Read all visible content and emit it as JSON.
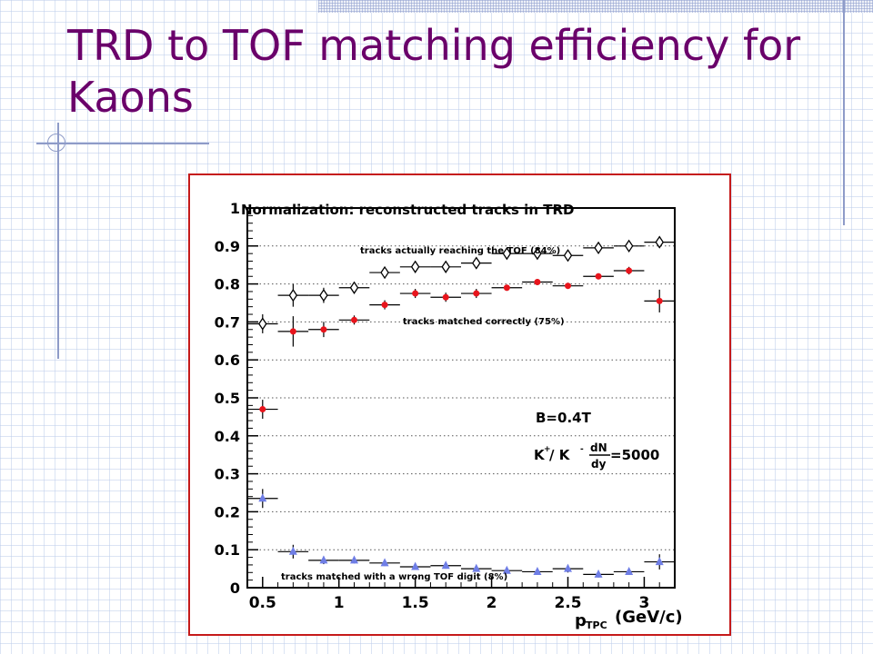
{
  "slide": {
    "title": "TRD to TOF matching efficiency for Kaons"
  },
  "chart_data": {
    "type": "scatter",
    "title": "Normalization: reconstructed tracks in TRD",
    "xlabel_main": "p",
    "xlabel_sub": "TPC",
    "xlabel_unit": "(GeV/c)",
    "ylabel": "",
    "xlim": [
      0.4,
      3.2
    ],
    "ylim": [
      0,
      1
    ],
    "xticks": [
      0.5,
      1,
      1.5,
      2,
      2.5,
      3
    ],
    "xtick_labels": [
      "0.5",
      "1",
      "1.5",
      "2",
      "2.5",
      "3"
    ],
    "yticks": [
      0,
      0.1,
      0.2,
      0.3,
      0.4,
      0.5,
      0.6,
      0.7,
      0.8,
      0.9,
      1
    ],
    "ytick_labels": [
      "0",
      "0.1",
      "0.2",
      "0.3",
      "0.4",
      "0.5",
      "0.6",
      "0.7",
      "0.8",
      "0.9",
      "1"
    ],
    "grid": "horizontal dotted",
    "series": [
      {
        "name": "tracks actually reaching the TOF (84%)",
        "marker": "open-diamond",
        "color": "#000000",
        "x": [
          0.5,
          0.7,
          0.9,
          1.1,
          1.3,
          1.5,
          1.7,
          1.9,
          2.1,
          2.3,
          2.5,
          2.7,
          2.9,
          3.1
        ],
        "y": [
          0.695,
          0.77,
          0.77,
          0.79,
          0.83,
          0.845,
          0.845,
          0.855,
          0.88,
          0.88,
          0.875,
          0.895,
          0.9,
          0.91
        ],
        "yerr": [
          0.025,
          0.03,
          0.02,
          0.012,
          0.012,
          0.01,
          0.01,
          0.01,
          0.008,
          0.008,
          0.008,
          0.008,
          0.008,
          0.015
        ]
      },
      {
        "name": "tracks matched correctly (75%)",
        "marker": "filled-circle",
        "color": "#e8141c",
        "x": [
          0.5,
          0.7,
          0.9,
          1.1,
          1.3,
          1.5,
          1.7,
          1.9,
          2.1,
          2.3,
          2.5,
          2.7,
          2.9,
          3.1
        ],
        "y": [
          0.47,
          0.675,
          0.68,
          0.705,
          0.745,
          0.775,
          0.765,
          0.775,
          0.79,
          0.805,
          0.795,
          0.82,
          0.835,
          0.755
        ],
        "yerr": [
          0.025,
          0.04,
          0.02,
          0.012,
          0.012,
          0.012,
          0.012,
          0.012,
          0.008,
          0.008,
          0.008,
          0.008,
          0.01,
          0.03
        ]
      },
      {
        "name": "tracks matched with a wrong TOF digit (8%)",
        "marker": "filled-triangle",
        "color": "#6f7ee6",
        "x": [
          0.5,
          0.7,
          0.9,
          1.1,
          1.3,
          1.5,
          1.7,
          1.9,
          2.1,
          2.3,
          2.5,
          2.7,
          2.9,
          3.1
        ],
        "y": [
          0.235,
          0.095,
          0.072,
          0.072,
          0.065,
          0.055,
          0.058,
          0.05,
          0.045,
          0.042,
          0.05,
          0.035,
          0.042,
          0.068
        ],
        "yerr": [
          0.025,
          0.018,
          0.01,
          0.008,
          0.008,
          0.008,
          0.008,
          0.008,
          0.008,
          0.008,
          0.01,
          0.008,
          0.008,
          0.02
        ]
      }
    ],
    "annotations": {
      "b_field": "B=0.4T",
      "ratio_lhs": "K",
      "ratio_sup1": "+",
      "ratio_mid": " / K",
      "ratio_sup2": "-",
      "ratio_frac_num": "dN",
      "ratio_frac_den": "dy",
      "ratio_rhs": "=5000"
    }
  }
}
